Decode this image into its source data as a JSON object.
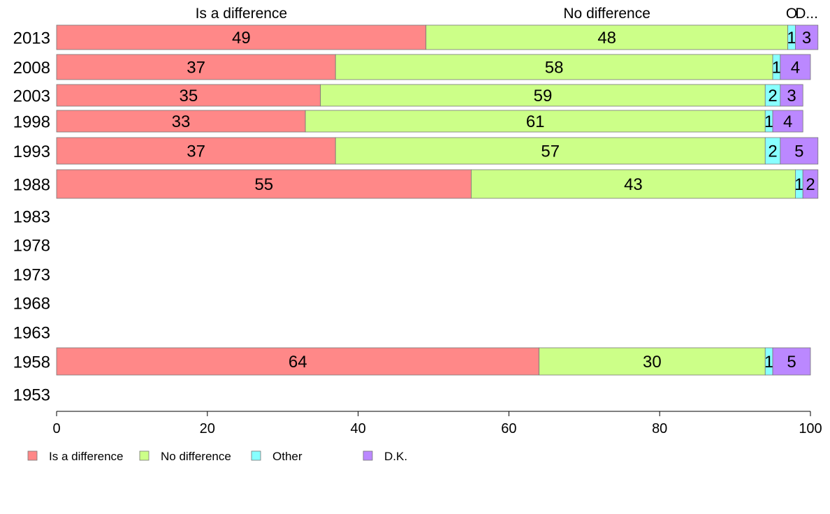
{
  "chart_data": {
    "type": "bar",
    "orientation": "horizontal",
    "stacked": true,
    "categories": [
      "2013",
      "2008",
      "2003",
      "1998",
      "1993",
      "1988",
      "1983",
      "1978",
      "1973",
      "1968",
      "1963",
      "1958",
      "1953"
    ],
    "series": [
      {
        "name": "Is a difference",
        "color": "#ff8888",
        "header_label": "Is a difference",
        "values": [
          49,
          37,
          35,
          33,
          37,
          55,
          null,
          null,
          null,
          null,
          null,
          64,
          null
        ],
        "labels": [
          "49",
          "37",
          "35",
          "33",
          "37",
          "55",
          "",
          "",
          "",
          "",
          "",
          "64",
          ""
        ]
      },
      {
        "name": "No difference",
        "color": "#ccff88",
        "header_label": "No difference",
        "values": [
          48,
          58,
          59,
          61,
          57,
          43,
          null,
          null,
          null,
          null,
          null,
          30,
          null
        ],
        "labels": [
          "48",
          "58",
          "59",
          "61",
          "57",
          "43",
          "",
          "",
          "",
          "",
          "",
          "30",
          ""
        ]
      },
      {
        "name": "Other",
        "color": "#88ffff",
        "header_label": "O",
        "values": [
          1,
          1,
          2,
          1,
          2,
          1,
          null,
          null,
          null,
          null,
          null,
          1,
          null
        ],
        "labels": [
          "1",
          "1",
          "2",
          "1",
          "2",
          "1",
          "",
          "",
          "",
          "",
          "",
          "1",
          ""
        ]
      },
      {
        "name": "D.K.",
        "color": "#bb88ff",
        "header_label": "D...",
        "values": [
          3,
          4,
          3,
          4,
          5,
          2,
          null,
          null,
          null,
          null,
          null,
          5,
          null
        ],
        "labels": [
          "3",
          "4",
          "3",
          "4",
          "5",
          "2",
          "",
          "",
          "",
          "",
          "",
          "5",
          ""
        ]
      }
    ],
    "xlim": [
      0,
      100
    ],
    "xticks": [
      0,
      20,
      40,
      60,
      80,
      100
    ],
    "xtick_labels": [
      "0",
      "20",
      "40",
      "60",
      "80",
      "100"
    ],
    "grid": false,
    "legend": {
      "position": "bottom-left",
      "entries": [
        "Is a difference",
        "No difference",
        "Other",
        "D.K."
      ]
    }
  }
}
